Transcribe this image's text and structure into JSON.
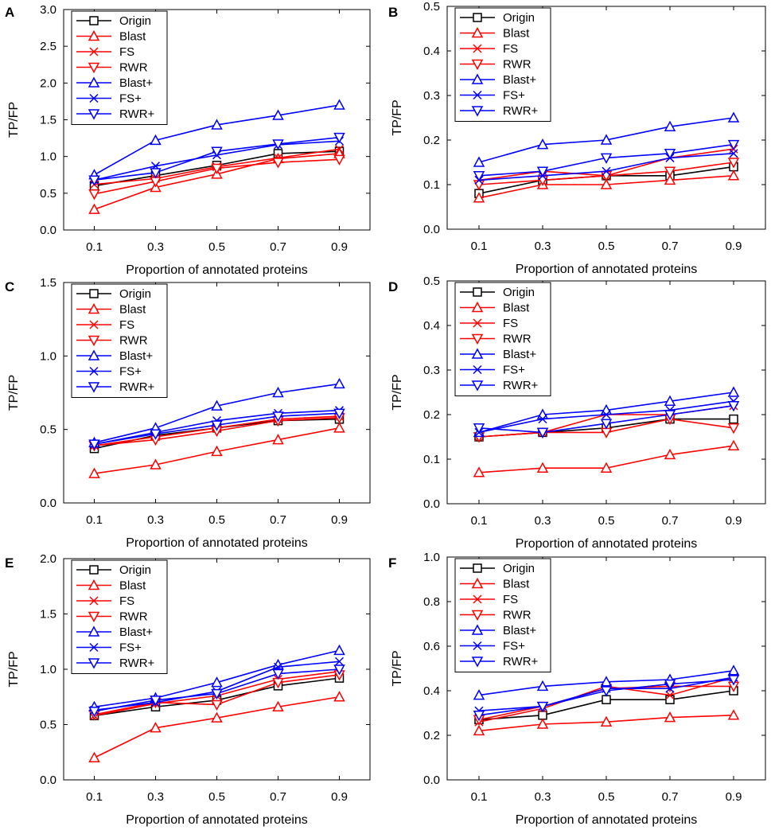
{
  "chart_data": [
    {
      "panel": "A",
      "type": "line",
      "x": [
        0.1,
        0.3,
        0.5,
        0.7,
        0.9
      ],
      "xticks": [
        "0.1",
        "0.3",
        "0.5",
        "0.7",
        "0.9"
      ],
      "yticks": [
        "0.0",
        "0.5",
        "1.0",
        "1.5",
        "2.0",
        "2.5",
        "3.0"
      ],
      "ylim": [
        0,
        3.0
      ],
      "xlabel": "Proportion of annotated proteins",
      "ylabel": "TP/FP",
      "legend": "top-left",
      "series": [
        {
          "name": "Origin",
          "color": "#000000",
          "marker": "square",
          "values": [
            0.6,
            0.74,
            0.88,
            1.04,
            1.07
          ]
        },
        {
          "name": "Blast",
          "color": "#ff0000",
          "marker": "triangle-up",
          "values": [
            0.28,
            0.58,
            0.76,
            0.97,
            1.04
          ]
        },
        {
          "name": "FS",
          "color": "#ff0000",
          "marker": "x",
          "values": [
            0.62,
            0.7,
            0.86,
            0.98,
            1.1
          ]
        },
        {
          "name": "RWR",
          "color": "#ff0000",
          "marker": "triangle-down",
          "values": [
            0.49,
            0.66,
            0.84,
            0.92,
            0.96
          ]
        },
        {
          "name": "Blast+",
          "color": "#0000ff",
          "marker": "triangle-up",
          "values": [
            0.75,
            1.22,
            1.43,
            1.56,
            1.7
          ]
        },
        {
          "name": "FS+",
          "color": "#0000ff",
          "marker": "x",
          "values": [
            0.68,
            0.87,
            1.02,
            1.16,
            1.21
          ]
        },
        {
          "name": "RWR+",
          "color": "#0000ff",
          "marker": "triangle-down",
          "values": [
            0.68,
            0.78,
            1.07,
            1.17,
            1.26
          ]
        }
      ]
    },
    {
      "panel": "B",
      "type": "line",
      "x": [
        0.1,
        0.3,
        0.5,
        0.7,
        0.9
      ],
      "xticks": [
        "0.1",
        "0.3",
        "0.5",
        "0.7",
        "0.9"
      ],
      "yticks": [
        "0.0",
        "0.1",
        "0.2",
        "0.3",
        "0.4",
        "0.5"
      ],
      "ylim": [
        0,
        0.5
      ],
      "xlabel": "Proportion of annotated proteins",
      "ylabel": "TP/FP",
      "legend": "top-left",
      "series": [
        {
          "name": "Origin",
          "color": "#000000",
          "marker": "square",
          "values": [
            0.08,
            0.11,
            0.12,
            0.12,
            0.14
          ]
        },
        {
          "name": "Blast",
          "color": "#ff0000",
          "marker": "triangle-up",
          "values": [
            0.07,
            0.1,
            0.1,
            0.11,
            0.12
          ]
        },
        {
          "name": "FS",
          "color": "#ff0000",
          "marker": "x",
          "values": [
            0.11,
            0.13,
            0.12,
            0.16,
            0.18
          ]
        },
        {
          "name": "RWR",
          "color": "#ff0000",
          "marker": "triangle-down",
          "values": [
            0.1,
            0.11,
            0.12,
            0.13,
            0.15
          ]
        },
        {
          "name": "Blast+",
          "color": "#0000ff",
          "marker": "triangle-up",
          "values": [
            0.15,
            0.19,
            0.2,
            0.23,
            0.25
          ]
        },
        {
          "name": "FS+",
          "color": "#0000ff",
          "marker": "x",
          "values": [
            0.11,
            0.12,
            0.13,
            0.16,
            0.17
          ]
        },
        {
          "name": "RWR+",
          "color": "#0000ff",
          "marker": "triangle-down",
          "values": [
            0.12,
            0.13,
            0.16,
            0.17,
            0.19
          ]
        }
      ]
    },
    {
      "panel": "C",
      "type": "line",
      "x": [
        0.1,
        0.3,
        0.5,
        0.7,
        0.9
      ],
      "xticks": [
        "0.1",
        "0.3",
        "0.5",
        "0.7",
        "0.9"
      ],
      "yticks": [
        "0.0",
        "0.5",
        "1.0",
        "1.5"
      ],
      "ylim": [
        0,
        1.5
      ],
      "xlabel": "Proportion of annotated proteins",
      "ylabel": "TP/FP",
      "legend": "top-left",
      "series": [
        {
          "name": "Origin",
          "color": "#000000",
          "marker": "square",
          "values": [
            0.37,
            0.46,
            0.51,
            0.56,
            0.57
          ]
        },
        {
          "name": "Blast",
          "color": "#ff0000",
          "marker": "triangle-up",
          "values": [
            0.2,
            0.26,
            0.35,
            0.43,
            0.51
          ]
        },
        {
          "name": "FS",
          "color": "#ff0000",
          "marker": "x",
          "values": [
            0.39,
            0.45,
            0.51,
            0.57,
            0.59
          ]
        },
        {
          "name": "RWR",
          "color": "#ff0000",
          "marker": "triangle-down",
          "values": [
            0.39,
            0.43,
            0.49,
            0.56,
            0.58
          ]
        },
        {
          "name": "Blast+",
          "color": "#0000ff",
          "marker": "triangle-up",
          "values": [
            0.41,
            0.51,
            0.66,
            0.75,
            0.81
          ]
        },
        {
          "name": "FS+",
          "color": "#0000ff",
          "marker": "x",
          "values": [
            0.4,
            0.48,
            0.56,
            0.61,
            0.63
          ]
        },
        {
          "name": "RWR+",
          "color": "#0000ff",
          "marker": "triangle-down",
          "values": [
            0.4,
            0.47,
            0.53,
            0.59,
            0.61
          ]
        }
      ]
    },
    {
      "panel": "D",
      "type": "line",
      "x": [
        0.1,
        0.3,
        0.5,
        0.7,
        0.9
      ],
      "xticks": [
        "0.1",
        "0.3",
        "0.5",
        "0.7",
        "0.9"
      ],
      "yticks": [
        "0.0",
        "0.1",
        "0.2",
        "0.3",
        "0.4",
        "0.5"
      ],
      "ylim": [
        0,
        0.5
      ],
      "xlabel": "Proportion of annotated proteins",
      "ylabel": "TP/FP",
      "legend": "top-left",
      "series": [
        {
          "name": "Origin",
          "color": "#000000",
          "marker": "square",
          "values": [
            0.15,
            0.16,
            0.17,
            0.19,
            0.19
          ]
        },
        {
          "name": "Blast",
          "color": "#ff0000",
          "marker": "triangle-up",
          "values": [
            0.07,
            0.08,
            0.08,
            0.11,
            0.13
          ]
        },
        {
          "name": "FS",
          "color": "#ff0000",
          "marker": "x",
          "values": [
            0.15,
            0.16,
            0.2,
            0.2,
            0.22
          ]
        },
        {
          "name": "RWR",
          "color": "#ff0000",
          "marker": "triangle-down",
          "values": [
            0.15,
            0.16,
            0.16,
            0.19,
            0.17
          ]
        },
        {
          "name": "Blast+",
          "color": "#0000ff",
          "marker": "triangle-up",
          "values": [
            0.16,
            0.2,
            0.21,
            0.23,
            0.25
          ]
        },
        {
          "name": "FS+",
          "color": "#0000ff",
          "marker": "x",
          "values": [
            0.16,
            0.19,
            0.2,
            0.21,
            0.23
          ]
        },
        {
          "name": "RWR+",
          "color": "#0000ff",
          "marker": "triangle-down",
          "values": [
            0.17,
            0.16,
            0.18,
            0.2,
            0.22
          ]
        }
      ]
    },
    {
      "panel": "E",
      "type": "line",
      "x": [
        0.1,
        0.3,
        0.5,
        0.7,
        0.9
      ],
      "xticks": [
        "0.1",
        "0.3",
        "0.5",
        "0.7",
        "0.9"
      ],
      "yticks": [
        "0.0",
        "0.5",
        "1.0",
        "1.5",
        "2.0"
      ],
      "ylim": [
        0,
        2.0
      ],
      "xlabel": "Proportion of annotated proteins",
      "ylabel": "TP/FP",
      "legend": "top-left",
      "series": [
        {
          "name": "Origin",
          "color": "#000000",
          "marker": "square",
          "values": [
            0.58,
            0.66,
            0.72,
            0.85,
            0.92
          ]
        },
        {
          "name": "Blast",
          "color": "#ff0000",
          "marker": "triangle-up",
          "values": [
            0.2,
            0.47,
            0.56,
            0.66,
            0.75
          ]
        },
        {
          "name": "FS",
          "color": "#ff0000",
          "marker": "x",
          "values": [
            0.58,
            0.69,
            0.76,
            0.91,
            0.98
          ]
        },
        {
          "name": "RWR",
          "color": "#ff0000",
          "marker": "triangle-down",
          "values": [
            0.59,
            0.7,
            0.68,
            0.88,
            0.95
          ]
        },
        {
          "name": "Blast+",
          "color": "#0000ff",
          "marker": "triangle-up",
          "values": [
            0.66,
            0.74,
            0.88,
            1.04,
            1.17
          ]
        },
        {
          "name": "FS+",
          "color": "#0000ff",
          "marker": "x",
          "values": [
            0.63,
            0.7,
            0.8,
            1.02,
            1.07
          ]
        },
        {
          "name": "RWR+",
          "color": "#0000ff",
          "marker": "triangle-down",
          "values": [
            0.62,
            0.72,
            0.78,
            0.96,
            1.0
          ]
        }
      ]
    },
    {
      "panel": "F",
      "type": "line",
      "x": [
        0.1,
        0.3,
        0.5,
        0.7,
        0.9
      ],
      "xticks": [
        "0.1",
        "0.3",
        "0.5",
        "0.7",
        "0.9"
      ],
      "yticks": [
        "0.0",
        "0.2",
        "0.4",
        "0.6",
        "0.8",
        "1.0"
      ],
      "ylim": [
        0,
        1.0
      ],
      "xlabel": "Proportion of annotated proteins",
      "ylabel": "TP/FP",
      "legend": "top-left",
      "series": [
        {
          "name": "Origin",
          "color": "#000000",
          "marker": "square",
          "values": [
            0.27,
            0.29,
            0.36,
            0.36,
            0.4
          ]
        },
        {
          "name": "Blast",
          "color": "#ff0000",
          "marker": "triangle-up",
          "values": [
            0.22,
            0.25,
            0.26,
            0.28,
            0.29
          ]
        },
        {
          "name": "FS",
          "color": "#ff0000",
          "marker": "x",
          "values": [
            0.26,
            0.32,
            0.42,
            0.38,
            0.46
          ]
        },
        {
          "name": "RWR",
          "color": "#ff0000",
          "marker": "triangle-down",
          "values": [
            0.27,
            0.33,
            0.41,
            0.42,
            0.42
          ]
        },
        {
          "name": "Blast+",
          "color": "#0000ff",
          "marker": "triangle-up",
          "values": [
            0.38,
            0.42,
            0.44,
            0.45,
            0.49
          ]
        },
        {
          "name": "FS+",
          "color": "#0000ff",
          "marker": "x",
          "values": [
            0.31,
            0.33,
            0.41,
            0.41,
            0.46
          ]
        },
        {
          "name": "RWR+",
          "color": "#0000ff",
          "marker": "triangle-down",
          "values": [
            0.29,
            0.33,
            0.4,
            0.43,
            0.45
          ]
        }
      ]
    }
  ]
}
